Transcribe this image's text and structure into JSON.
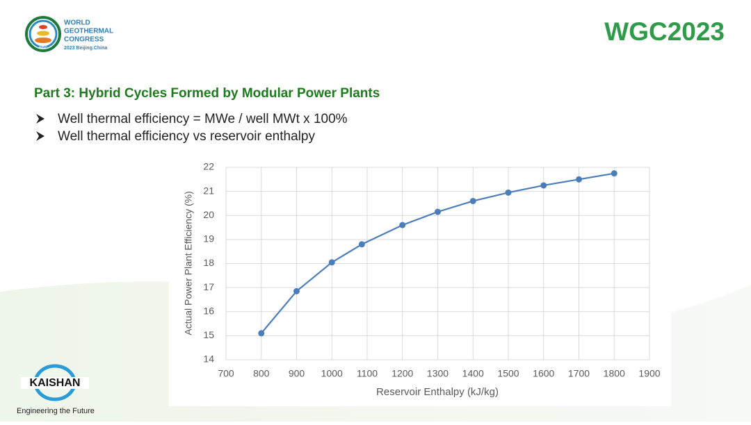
{
  "header": {
    "logo_lines": [
      "WORLD",
      "GEOTHERMAL",
      "CONGRESS",
      "2023 Beijing.China"
    ],
    "logo_badge": "WGC",
    "brand": "WGC2023"
  },
  "section_title": "Part 3: Hybrid Cycles Formed by Modular Power Plants",
  "bullets": [
    "Well thermal efficiency = MWe / well MWt x 100%",
    "Well thermal efficiency vs reservoir enthalpy"
  ],
  "footer": {
    "company": "KAISHAN",
    "slogan": "Engineering the Future"
  },
  "chart_data": {
    "type": "line",
    "x_label": "Reservoir Enthalpy (kJ/kg)",
    "y_label": "Actual Power Plant Efficiency (%)",
    "x": [
      800,
      900,
      1000,
      1085,
      1200,
      1300,
      1400,
      1500,
      1600,
      1700,
      1800
    ],
    "values": [
      15.1,
      16.85,
      18.05,
      18.8,
      19.6,
      20.15,
      20.6,
      20.95,
      21.25,
      21.5,
      21.75
    ],
    "color": "#4a7ebb",
    "xlim": [
      700,
      1900
    ],
    "xticks": [
      700,
      800,
      900,
      1000,
      1100,
      1200,
      1300,
      1400,
      1500,
      1600,
      1700,
      1800,
      1900
    ],
    "ylim": [
      14,
      22
    ],
    "yticks": [
      14,
      15,
      16,
      17,
      18,
      19,
      20,
      21,
      22
    ],
    "grid": true
  }
}
